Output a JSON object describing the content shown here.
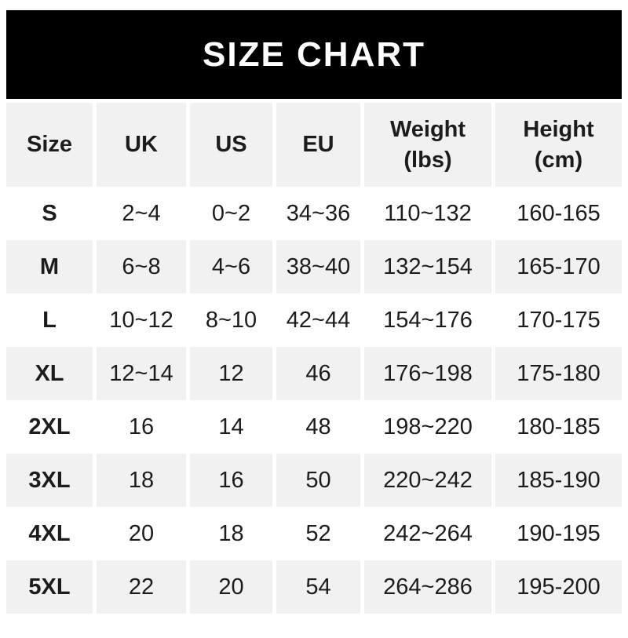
{
  "banner": {
    "title": "SIZE CHART",
    "bg": "#000000",
    "text_color": "#ffffff"
  },
  "table": {
    "stripe_color": "#f1f1f1",
    "text_color": "#1c1c1c",
    "header": [
      {
        "line1": "Size",
        "line2": ""
      },
      {
        "line1": "UK",
        "line2": ""
      },
      {
        "line1": "US",
        "line2": ""
      },
      {
        "line1": "EU",
        "line2": ""
      },
      {
        "line1": "Weight",
        "line2": "(lbs)"
      },
      {
        "line1": "Height",
        "line2": "(cm)"
      }
    ],
    "rows": [
      {
        "cells": [
          "S",
          "2~4",
          "0~2",
          "34~36",
          "110~132",
          "160-165"
        ]
      },
      {
        "cells": [
          "M",
          "6~8",
          "4~6",
          "38~40",
          "132~154",
          "165-170"
        ]
      },
      {
        "cells": [
          "L",
          "10~12",
          "8~10",
          "42~44",
          "154~176",
          "170-175"
        ]
      },
      {
        "cells": [
          "XL",
          "12~14",
          "12",
          "46",
          "176~198",
          "175-180"
        ]
      },
      {
        "cells": [
          "2XL",
          "16",
          "14",
          "48",
          "198~220",
          "180-185"
        ]
      },
      {
        "cells": [
          "3XL",
          "18",
          "16",
          "50",
          "220~242",
          "185-190"
        ]
      },
      {
        "cells": [
          "4XL",
          "20",
          "18",
          "52",
          "242~264",
          "190-195"
        ]
      },
      {
        "cells": [
          "5XL",
          "22",
          "20",
          "54",
          "264~286",
          "195-200"
        ]
      }
    ]
  },
  "chart_data": {
    "type": "table",
    "title": "SIZE CHART",
    "columns": [
      "Size",
      "UK",
      "US",
      "EU",
      "Weight (lbs)",
      "Height (cm)"
    ],
    "rows": [
      [
        "S",
        "2~4",
        "0~2",
        "34~36",
        "110~132",
        "160-165"
      ],
      [
        "M",
        "6~8",
        "4~6",
        "38~40",
        "132~154",
        "165-170"
      ],
      [
        "L",
        "10~12",
        "8~10",
        "42~44",
        "154~176",
        "170-175"
      ],
      [
        "XL",
        "12~14",
        "12",
        "46",
        "176~198",
        "175-180"
      ],
      [
        "2XL",
        "16",
        "14",
        "48",
        "198~220",
        "180-185"
      ],
      [
        "3XL",
        "18",
        "16",
        "50",
        "220~242",
        "185-190"
      ],
      [
        "4XL",
        "20",
        "18",
        "52",
        "242~264",
        "190-195"
      ],
      [
        "5XL",
        "22",
        "20",
        "54",
        "264~286",
        "195-200"
      ]
    ],
    "layout": {
      "header_background": "#f1f1f1",
      "striped_rows": [
        "header",
        "M",
        "XL",
        "3XL",
        "5XL"
      ],
      "column_separators": "white gutters",
      "banner": {
        "background": "#000000",
        "text": "#ffffff"
      }
    }
  }
}
